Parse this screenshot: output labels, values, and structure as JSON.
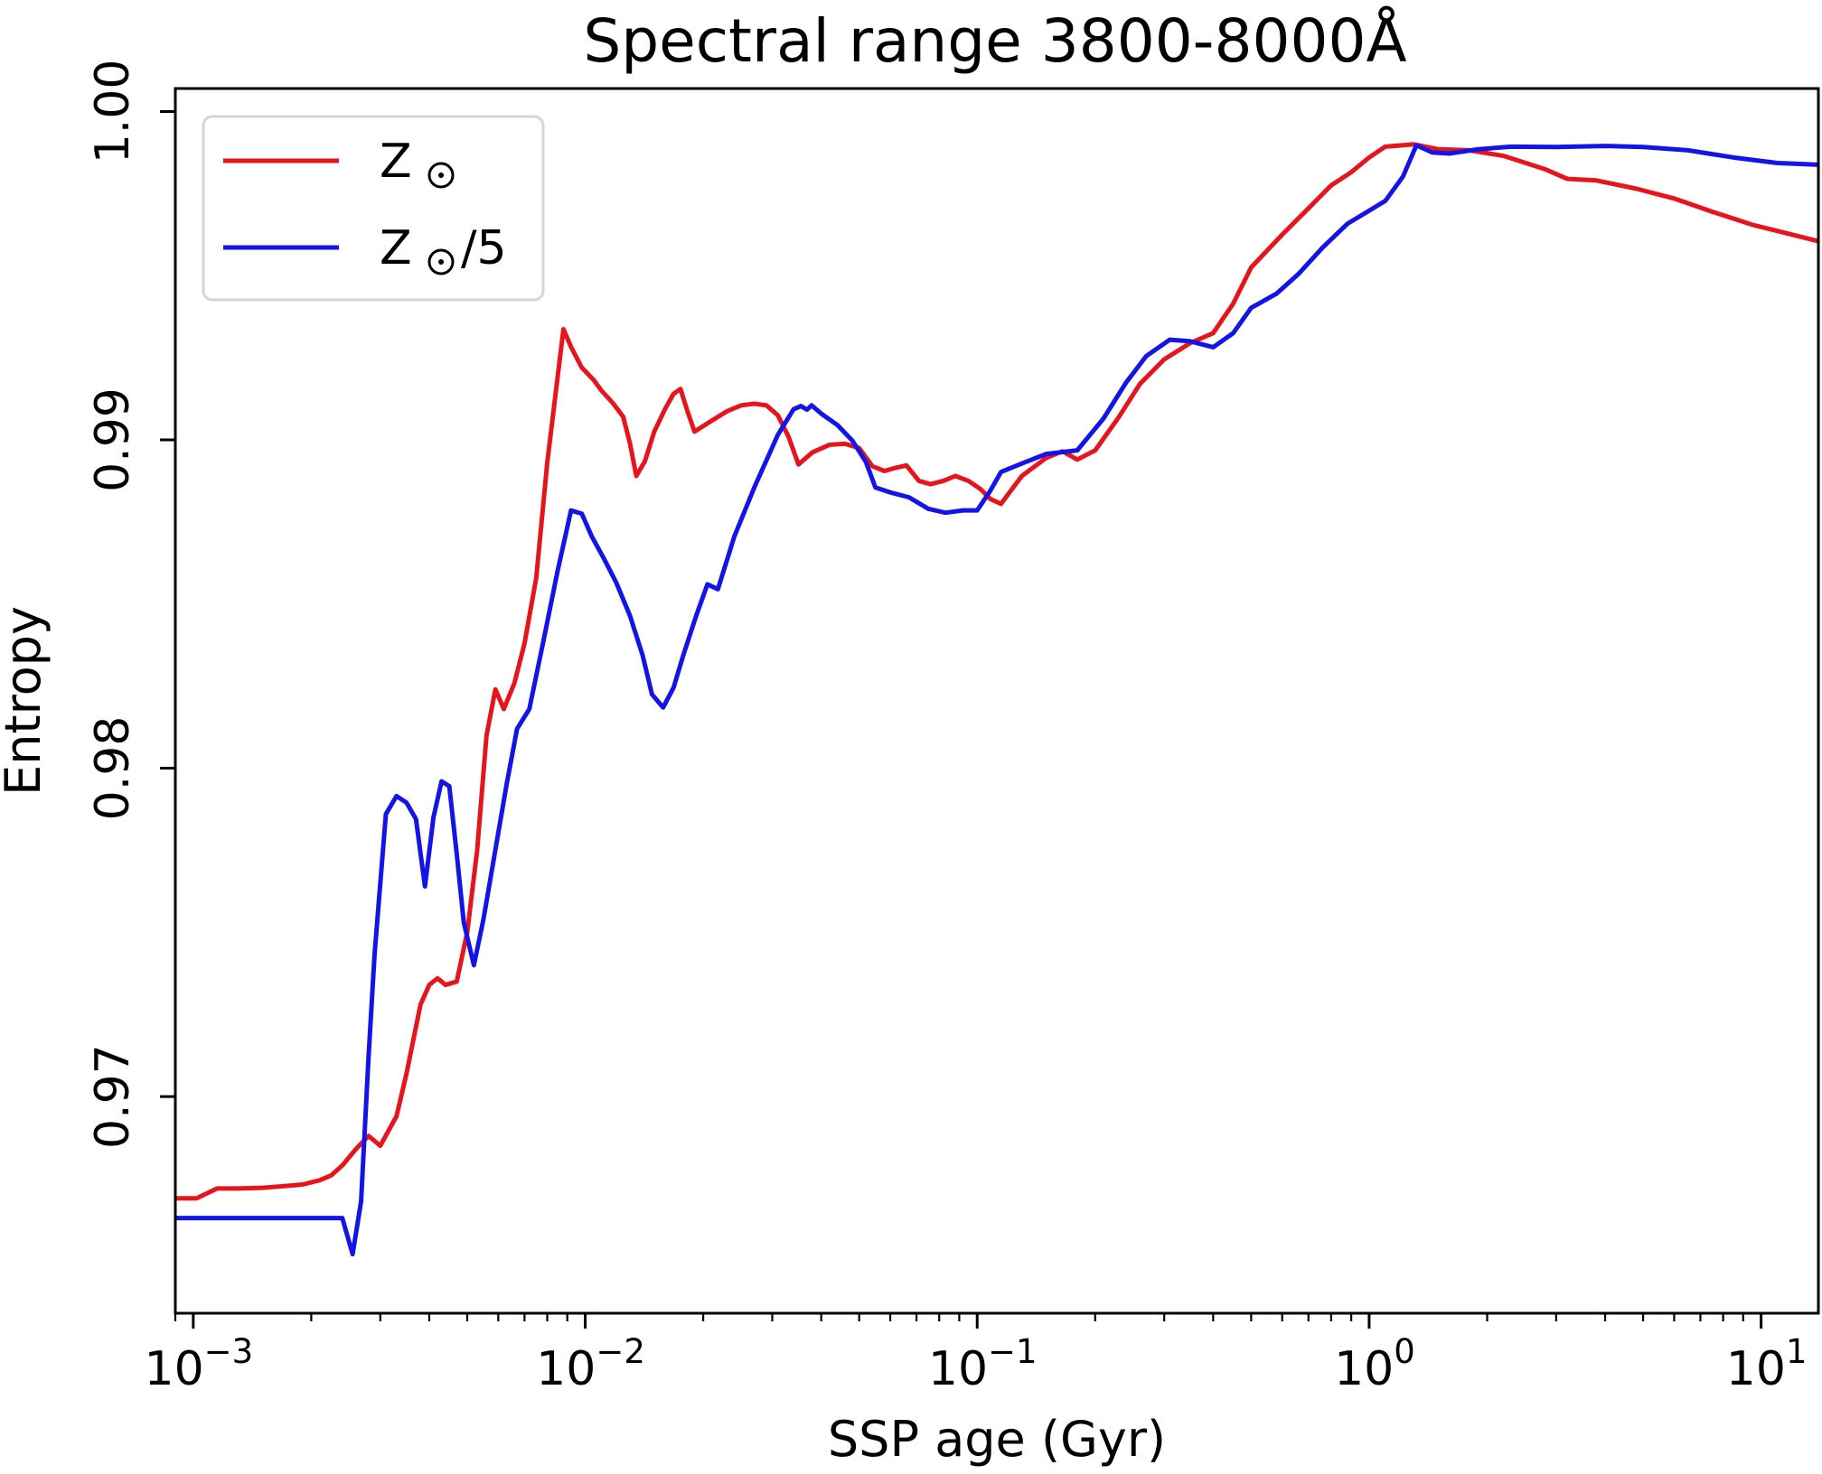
{
  "chart_data": {
    "type": "line",
    "title": "Spectral range 3800-8000Å",
    "xlabel": "SSP age (Gyr)",
    "ylabel": "Entropy",
    "x_scale": "log",
    "xlim": [
      0.0009,
      14
    ],
    "ylim": [
      0.9634,
      1.0007
    ],
    "grid": false,
    "legend_position": "top-left",
    "x_ticks": [
      {
        "value": 0.001,
        "base": "10",
        "exp": "−3"
      },
      {
        "value": 0.01,
        "base": "10",
        "exp": "−2"
      },
      {
        "value": 0.1,
        "base": "10",
        "exp": "−1"
      },
      {
        "value": 1,
        "base": "10",
        "exp": "0"
      },
      {
        "value": 10,
        "base": "10",
        "exp": "1"
      }
    ],
    "y_ticks": [
      {
        "value": 0.97,
        "label": "0.97"
      },
      {
        "value": 0.98,
        "label": "0.98"
      },
      {
        "value": 0.99,
        "label": "0.99"
      },
      {
        "value": 1.0,
        "label": "1.00"
      }
    ],
    "series": [
      {
        "name": "Z⊙",
        "legend_base": "Z",
        "legend_suffix": "",
        "color": "#e8141c",
        "points": [
          [
            0.0009,
            0.9669
          ],
          [
            0.00102,
            0.9669
          ],
          [
            0.00115,
            0.9672
          ],
          [
            0.0013,
            0.9672
          ],
          [
            0.0015,
            0.96722
          ],
          [
            0.0017,
            0.96727
          ],
          [
            0.0019,
            0.96732
          ],
          [
            0.0021,
            0.96745
          ],
          [
            0.00225,
            0.9676
          ],
          [
            0.0024,
            0.9679
          ],
          [
            0.0026,
            0.9684
          ],
          [
            0.0028,
            0.9688
          ],
          [
            0.003,
            0.9685
          ],
          [
            0.0033,
            0.9694
          ],
          [
            0.0035,
            0.9707
          ],
          [
            0.0038,
            0.9728
          ],
          [
            0.004,
            0.9734
          ],
          [
            0.0042,
            0.9736
          ],
          [
            0.0044,
            0.9734
          ],
          [
            0.0047,
            0.9735
          ],
          [
            0.005,
            0.975
          ],
          [
            0.0053,
            0.9775
          ],
          [
            0.0056,
            0.981
          ],
          [
            0.0059,
            0.9824
          ],
          [
            0.0062,
            0.9818
          ],
          [
            0.0066,
            0.9826
          ],
          [
            0.007,
            0.9838
          ],
          [
            0.0075,
            0.9858
          ],
          [
            0.008,
            0.9893
          ],
          [
            0.0085,
            0.9919
          ],
          [
            0.0088,
            0.99337
          ],
          [
            0.0092,
            0.99283
          ],
          [
            0.0098,
            0.9922
          ],
          [
            0.0105,
            0.99183
          ],
          [
            0.011,
            0.9915
          ],
          [
            0.0118,
            0.9911
          ],
          [
            0.0125,
            0.9907
          ],
          [
            0.013,
            0.9899
          ],
          [
            0.0135,
            0.9889
          ],
          [
            0.0142,
            0.98935
          ],
          [
            0.015,
            0.99025
          ],
          [
            0.016,
            0.99095
          ],
          [
            0.0168,
            0.9914
          ],
          [
            0.0175,
            0.99155
          ],
          [
            0.0182,
            0.9909
          ],
          [
            0.019,
            0.99025
          ],
          [
            0.021,
            0.99058
          ],
          [
            0.023,
            0.99087
          ],
          [
            0.025,
            0.99105
          ],
          [
            0.027,
            0.9911
          ],
          [
            0.029,
            0.99105
          ],
          [
            0.031,
            0.99075
          ],
          [
            0.033,
            0.9901
          ],
          [
            0.035,
            0.98925
          ],
          [
            0.038,
            0.98962
          ],
          [
            0.042,
            0.98985
          ],
          [
            0.046,
            0.98988
          ],
          [
            0.05,
            0.98975
          ],
          [
            0.054,
            0.9892
          ],
          [
            0.058,
            0.98905
          ],
          [
            0.062,
            0.98915
          ],
          [
            0.066,
            0.98922
          ],
          [
            0.071,
            0.98875
          ],
          [
            0.076,
            0.98865
          ],
          [
            0.082,
            0.98875
          ],
          [
            0.088,
            0.9889
          ],
          [
            0.095,
            0.98875
          ],
          [
            0.102,
            0.9885
          ],
          [
            0.108,
            0.9882
          ],
          [
            0.115,
            0.98805
          ],
          [
            0.13,
            0.9889
          ],
          [
            0.15,
            0.98945
          ],
          [
            0.165,
            0.98965
          ],
          [
            0.18,
            0.9894
          ],
          [
            0.2,
            0.98968
          ],
          [
            0.23,
            0.9907
          ],
          [
            0.26,
            0.9917
          ],
          [
            0.3,
            0.99245
          ],
          [
            0.35,
            0.99295
          ],
          [
            0.4,
            0.99325
          ],
          [
            0.45,
            0.99415
          ],
          [
            0.5,
            0.99525
          ],
          [
            0.6,
            0.99625
          ],
          [
            0.7,
            0.99705
          ],
          [
            0.8,
            0.99775
          ],
          [
            0.9,
            0.99815
          ],
          [
            1.0,
            0.9986
          ],
          [
            1.1,
            0.99893
          ],
          [
            1.3,
            0.999
          ],
          [
            1.5,
            0.99885
          ],
          [
            1.8,
            0.99882
          ],
          [
            2.2,
            0.99865
          ],
          [
            2.8,
            0.99825
          ],
          [
            3.2,
            0.99795
          ],
          [
            3.8,
            0.9979
          ],
          [
            4.8,
            0.99765
          ],
          [
            6.0,
            0.99735
          ],
          [
            7.5,
            0.99695
          ],
          [
            9.5,
            0.99655
          ],
          [
            12.0,
            0.99625
          ],
          [
            14.0,
            0.99605
          ]
        ]
      },
      {
        "name": "Z⊙/5",
        "legend_base": "Z",
        "legend_suffix": "/5",
        "color": "#1414e8",
        "points": [
          [
            0.0009,
            0.9663
          ],
          [
            0.0012,
            0.9663
          ],
          [
            0.0015,
            0.9663
          ],
          [
            0.0018,
            0.9663
          ],
          [
            0.0021,
            0.9663
          ],
          [
            0.0024,
            0.9663
          ],
          [
            0.00255,
            0.9652
          ],
          [
            0.00268,
            0.9668
          ],
          [
            0.0028,
            0.9712
          ],
          [
            0.0029,
            0.9743
          ],
          [
            0.0031,
            0.9786
          ],
          [
            0.0033,
            0.97915
          ],
          [
            0.0035,
            0.97895
          ],
          [
            0.0037,
            0.97845
          ],
          [
            0.0039,
            0.9764
          ],
          [
            0.0041,
            0.9785
          ],
          [
            0.0043,
            0.9796
          ],
          [
            0.0045,
            0.97945
          ],
          [
            0.0047,
            0.9774
          ],
          [
            0.0049,
            0.9753
          ],
          [
            0.0052,
            0.974
          ],
          [
            0.0055,
            0.9754
          ],
          [
            0.0058,
            0.977
          ],
          [
            0.0063,
            0.9795
          ],
          [
            0.0067,
            0.9812
          ],
          [
            0.0072,
            0.9818
          ],
          [
            0.0078,
            0.9838
          ],
          [
            0.0085,
            0.986
          ],
          [
            0.0092,
            0.98785
          ],
          [
            0.0098,
            0.98775
          ],
          [
            0.0104,
            0.98705
          ],
          [
            0.0112,
            0.98635
          ],
          [
            0.012,
            0.98565
          ],
          [
            0.013,
            0.98465
          ],
          [
            0.014,
            0.98345
          ],
          [
            0.0148,
            0.98225
          ],
          [
            0.0158,
            0.98185
          ],
          [
            0.0168,
            0.98245
          ],
          [
            0.0178,
            0.98345
          ],
          [
            0.0192,
            0.98465
          ],
          [
            0.0205,
            0.9856
          ],
          [
            0.0218,
            0.98545
          ],
          [
            0.024,
            0.98705
          ],
          [
            0.027,
            0.98855
          ],
          [
            0.031,
            0.99015
          ],
          [
            0.034,
            0.99093
          ],
          [
            0.0355,
            0.99103
          ],
          [
            0.0368,
            0.99092
          ],
          [
            0.0378,
            0.99105
          ],
          [
            0.04,
            0.9908
          ],
          [
            0.044,
            0.99045
          ],
          [
            0.048,
            0.98998
          ],
          [
            0.052,
            0.98933
          ],
          [
            0.055,
            0.98855
          ],
          [
            0.06,
            0.9884
          ],
          [
            0.067,
            0.98825
          ],
          [
            0.075,
            0.9879
          ],
          [
            0.083,
            0.98778
          ],
          [
            0.092,
            0.98785
          ],
          [
            0.1,
            0.98785
          ],
          [
            0.108,
            0.98845
          ],
          [
            0.115,
            0.98902
          ],
          [
            0.13,
            0.98928
          ],
          [
            0.15,
            0.98957
          ],
          [
            0.18,
            0.98968
          ],
          [
            0.21,
            0.99065
          ],
          [
            0.24,
            0.99175
          ],
          [
            0.27,
            0.99255
          ],
          [
            0.31,
            0.99305
          ],
          [
            0.35,
            0.993
          ],
          [
            0.4,
            0.99282
          ],
          [
            0.45,
            0.99325
          ],
          [
            0.5,
            0.99402
          ],
          [
            0.58,
            0.99445
          ],
          [
            0.66,
            0.99505
          ],
          [
            0.76,
            0.99585
          ],
          [
            0.88,
            0.99658
          ],
          [
            1.0,
            0.99698
          ],
          [
            1.1,
            0.99728
          ],
          [
            1.22,
            0.99802
          ],
          [
            1.32,
            0.99897
          ],
          [
            1.45,
            0.99875
          ],
          [
            1.6,
            0.99872
          ],
          [
            1.9,
            0.99885
          ],
          [
            2.3,
            0.99893
          ],
          [
            3.0,
            0.99892
          ],
          [
            4.0,
            0.99895
          ],
          [
            5.0,
            0.99892
          ],
          [
            6.5,
            0.99882
          ],
          [
            8.5,
            0.9986
          ],
          [
            11.0,
            0.99843
          ],
          [
            14.0,
            0.99838
          ]
        ]
      }
    ]
  }
}
